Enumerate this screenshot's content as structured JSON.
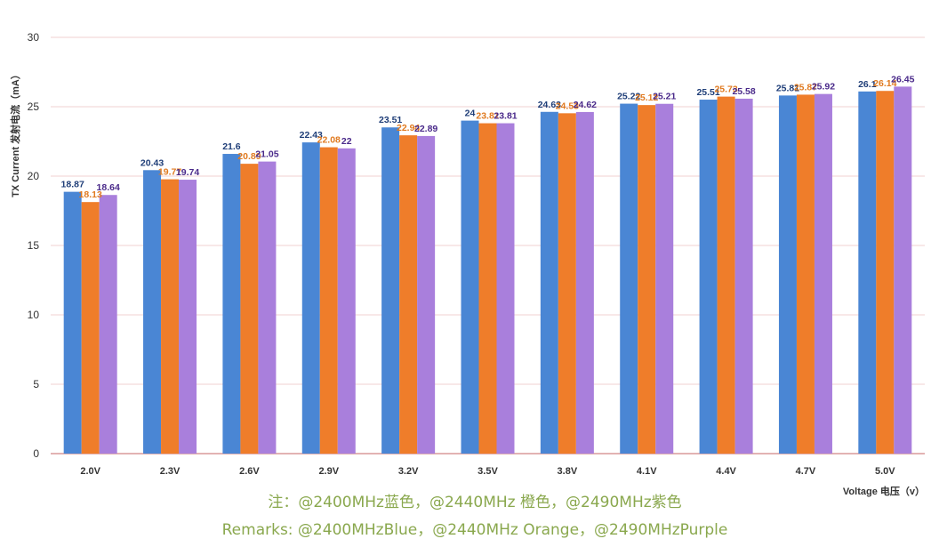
{
  "chart_data": {
    "type": "bar",
    "categories": [
      "2.0V",
      "2.3V",
      "2.6V",
      "2.9V",
      "3.2V",
      "3.5V",
      "3.8V",
      "4.1V",
      "4.4V",
      "4.7V",
      "5.0V"
    ],
    "series": [
      {
        "color": "#4a86d4",
        "label_color": "#1f3e78",
        "values": [
          18.87,
          20.43,
          21.6,
          22.43,
          23.51,
          24,
          24.63,
          25.22,
          25.51,
          25.81,
          26.1
        ]
      },
      {
        "color": "#ef7d2a",
        "label_color": "#e07a20",
        "values": [
          18.13,
          19.77,
          20.89,
          22.08,
          22.94,
          23.81,
          24.53,
          25.12,
          25.73,
          25.87,
          26.14
        ]
      },
      {
        "color": "#a97fdc",
        "label_color": "#4a2a8a",
        "values": [
          18.64,
          19.74,
          21.05,
          22,
          22.89,
          23.81,
          24.62,
          25.21,
          25.58,
          25.92,
          26.45
        ]
      }
    ],
    "ylabel": "TX Current 发射电流（mA）",
    "xlabel": "Voltage 电压（v）",
    "ylim": [
      0,
      30
    ],
    "yticks": [
      0,
      5,
      10,
      15,
      20,
      25,
      30
    ],
    "grid": "horizontal",
    "gridline_color": "#f2d0d0",
    "baseline_color": "#d99a9a"
  },
  "notes": {
    "line_cn": "注：@2400MHz蓝色，@2440MHz 橙色，@2490MHz紫色",
    "line_en": "Remarks: @2400MHzBlue，@2440MHz Orange，@2490MHzPurple"
  }
}
